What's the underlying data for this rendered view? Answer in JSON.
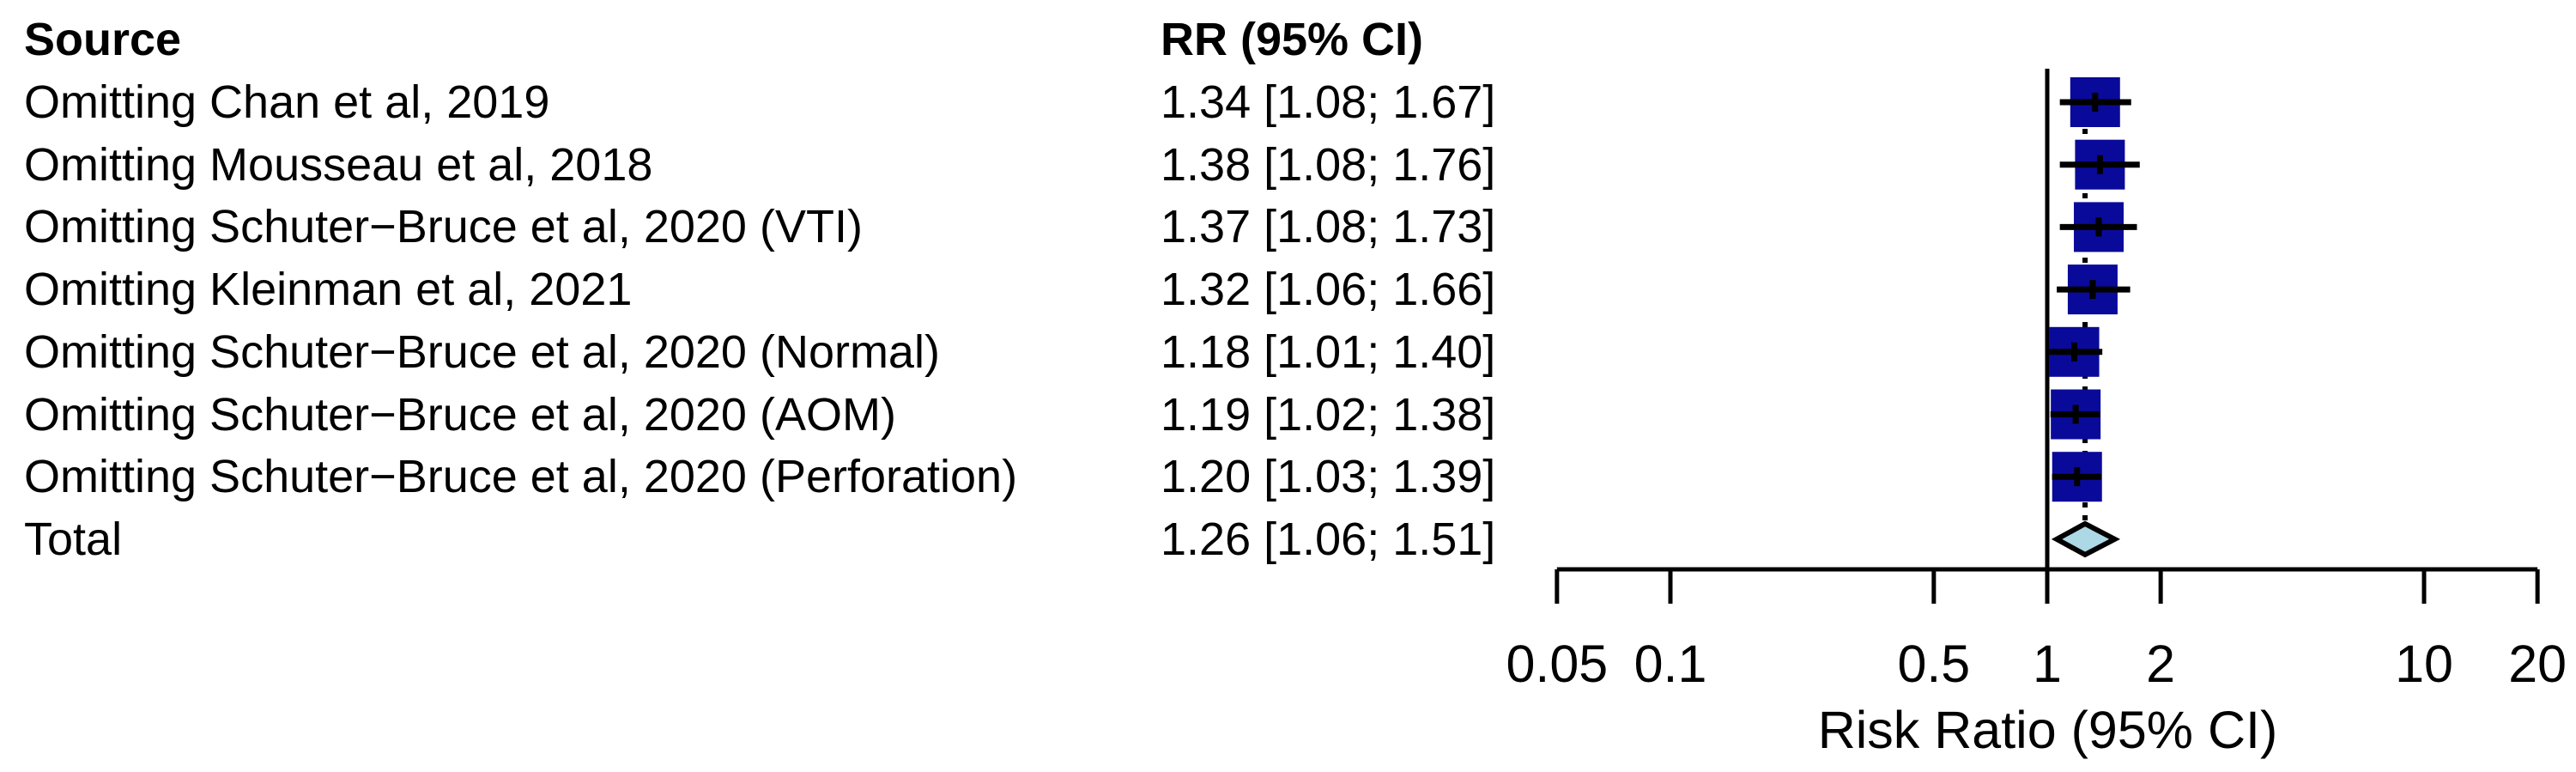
{
  "chart_data": {
    "type": "scatter",
    "variant": "forest-plot-leave-one-out-sensitivity-analysis",
    "x_scale": "log10",
    "columns": {
      "source": "Source",
      "rr": "RR (95% CI)"
    },
    "studies": [
      {
        "label": "Omitting Chan et al, 2019",
        "rr": 1.34,
        "ci_low": 1.08,
        "ci_high": 1.67,
        "rr_text": "1.34 [1.08; 1.67]"
      },
      {
        "label": "Omitting Mousseau et al, 2018",
        "rr": 1.38,
        "ci_low": 1.08,
        "ci_high": 1.76,
        "rr_text": "1.38 [1.08; 1.76]"
      },
      {
        "label": "Omitting Schuter−Bruce et al, 2020 (VTI)",
        "rr": 1.37,
        "ci_low": 1.08,
        "ci_high": 1.73,
        "rr_text": "1.37 [1.08; 1.73]"
      },
      {
        "label": "Omitting Kleinman et al, 2021",
        "rr": 1.32,
        "ci_low": 1.06,
        "ci_high": 1.66,
        "rr_text": "1.32 [1.06; 1.66]"
      },
      {
        "label": "Omitting Schuter−Bruce et al, 2020 (Normal)",
        "rr": 1.18,
        "ci_low": 1.01,
        "ci_high": 1.4,
        "rr_text": "1.18 [1.01; 1.40]"
      },
      {
        "label": "Omitting Schuter−Bruce et al, 2020 (AOM)",
        "rr": 1.19,
        "ci_low": 1.02,
        "ci_high": 1.38,
        "rr_text": "1.19 [1.02; 1.38]"
      },
      {
        "label": "Omitting Schuter−Bruce et al, 2020 (Perforation)",
        "rr": 1.2,
        "ci_low": 1.03,
        "ci_high": 1.39,
        "rr_text": "1.20 [1.03; 1.39]"
      }
    ],
    "total": {
      "label": "Total",
      "rr": 1.26,
      "ci_low": 1.06,
      "ci_high": 1.51,
      "rr_text": "1.26 [1.06; 1.51]"
    },
    "x_ticks": [
      0.05,
      0.1,
      0.5,
      1,
      2,
      10,
      20
    ],
    "x_tick_labels": [
      "0.05",
      "0.1",
      "0.5",
      "1",
      "2",
      "10",
      "20"
    ],
    "x_range": [
      0.05,
      20
    ],
    "reference_line": 1,
    "pooled_dotted_line": 1.26,
    "xlabel": "Risk Ratio (95% CI)",
    "title": "",
    "grid": false,
    "legend": null
  },
  "colors": {
    "square": "#0a0a9a",
    "diamond_fill": "#add8e6",
    "line": "#000000",
    "text": "#000000",
    "background": "#ffffff"
  }
}
